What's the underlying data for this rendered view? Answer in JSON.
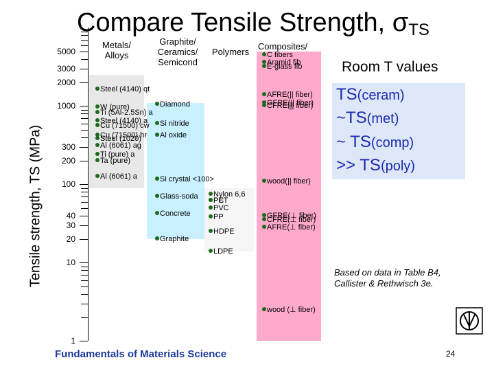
{
  "title_main": "Compare Tensile Strength, σ",
  "title_sub": "TS",
  "ylabel": "Tensile strength, TS (MPa)",
  "room_t": "Room T values",
  "columns": [
    {
      "key": "metals",
      "label": "Metals/\nAlloys"
    },
    {
      "key": "ceramics",
      "label": "Graphite/\nCeramics/\nSemicond"
    },
    {
      "key": "polymers",
      "label": "Polymers"
    },
    {
      "key": "composites",
      "label": "Composites/\nfibers"
    }
  ],
  "note": "Based on data in Table B4,\nCallister & Rethwisch 3e.",
  "footer": "Fundamentals of Materials Science",
  "page_number": "24",
  "relations": [
    {
      "left": "TS",
      "sub": "(ceram)",
      "prefix": ""
    },
    {
      "left": "TS",
      "sub": "(met)",
      "prefix": "~"
    },
    {
      "left": "TS",
      "sub": "(comp)",
      "prefix": "~ "
    },
    {
      "left": "TS",
      "sub": "(poly)",
      "prefix": ">> "
    }
  ],
  "colors": {
    "metals_bar": "#e8e8e8",
    "ceramics_bar": "#c8f0ff",
    "polymers_bar": "#f5f5f5",
    "composites_bar": "#ffaacc",
    "dot": "#1a6a1a",
    "relation_text": "#1a2ab0",
    "relation_bg": "#dde7f7",
    "footer": "#1a3a9a"
  },
  "chart_data": {
    "type": "bar",
    "scale": "log",
    "ylim": [
      1,
      10000
    ],
    "ylabel": "Tensile strength, TS (MPa)",
    "tick_labels": [
      "5000",
      "3000",
      "2000",
      "1000",
      "300",
      "200",
      "100",
      "40",
      "30",
      "20",
      "10",
      "1"
    ],
    "tick_values": [
      5000,
      3000,
      2000,
      1000,
      300,
      200,
      100,
      40,
      30,
      20,
      10,
      1
    ],
    "categories": [
      "Metals/ Alloys",
      "Graphite/ Ceramics/ Semicond",
      "Polymers",
      "Composites/ fibers"
    ],
    "ranges": [
      {
        "category": "Metals/ Alloys",
        "min": 90,
        "max": 2500
      },
      {
        "category": "Graphite/ Ceramics/ Semicond",
        "min": 20,
        "max": 1100
      },
      {
        "category": "Polymers",
        "min": 14,
        "max": 90
      },
      {
        "category": "Composites/ fibers",
        "min": 1,
        "max": 5000
      }
    ],
    "points": [
      {
        "category": "Metals/ Alloys",
        "label": "Steel (4140) qt",
        "value": 1650
      },
      {
        "category": "Metals/ Alloys",
        "label": "W (pure)",
        "value": 960
      },
      {
        "category": "Metals/ Alloys",
        "label": "Ti (5Al-2.5Sn) a",
        "value": 830
      },
      {
        "category": "Metals/ Alloys",
        "label": "Steel (4140) a",
        "value": 650
      },
      {
        "category": "Metals/ Alloys",
        "label": "Cu (71500) cw",
        "value": 560
      },
      {
        "category": "Metals/ Alloys",
        "label": "Cu (71500) hr",
        "value": 420
      },
      {
        "category": "Metals/ Alloys",
        "label": "Steel (1020)",
        "value": 380
      },
      {
        "category": "Metals/ Alloys",
        "label": "Al (6061) ag",
        "value": 310
      },
      {
        "category": "Metals/ Alloys",
        "label": "Ti (pure) a",
        "value": 240
      },
      {
        "category": "Metals/ Alloys",
        "label": "Ta (pure)",
        "value": 200
      },
      {
        "category": "Metals/ Alloys",
        "label": "Al (6061) a",
        "value": 125
      },
      {
        "category": "Graphite/ Ceramics/ Semicond",
        "label": "Diamond",
        "value": 1050
      },
      {
        "category": "Graphite/ Ceramics/ Semicond",
        "label": "Si nitride",
        "value": 600
      },
      {
        "category": "Graphite/ Ceramics/ Semicond",
        "label": "Al oxide",
        "value": 420
      },
      {
        "category": "Graphite/ Ceramics/ Semicond",
        "label": "Si crystal <100>",
        "value": 115
      },
      {
        "category": "Graphite/ Ceramics/ Semicond",
        "label": "Glass-soda",
        "value": 70
      },
      {
        "category": "Graphite/ Ceramics/ Semicond",
        "label": "Concrete",
        "value": 42
      },
      {
        "category": "Graphite/ Ceramics/ Semicond",
        "label": "Graphite",
        "value": 20
      },
      {
        "category": "Polymers",
        "label": "Nylon 6,6",
        "value": 75
      },
      {
        "category": "Polymers",
        "label": "PC",
        "value": 62
      },
      {
        "category": "Polymers",
        "label": "PET",
        "value": 62
      },
      {
        "category": "Polymers",
        "label": "PVC",
        "value": 50
      },
      {
        "category": "Polymers",
        "label": "PP",
        "value": 38
      },
      {
        "category": "Polymers",
        "label": "HDPE",
        "value": 25
      },
      {
        "category": "Polymers",
        "label": "LDPE",
        "value": 14
      },
      {
        "category": "Composites/ fibers",
        "label": "C fibers",
        "value": 4500
      },
      {
        "category": "Composites/ fibers",
        "label": "Aramid fib",
        "value": 3600
      },
      {
        "category": "Composites/ fibers",
        "label": "E-glass fib",
        "value": 3200
      },
      {
        "category": "Composites/ fibers",
        "label": "AFRE(|| fiber)",
        "value": 1400
      },
      {
        "category": "Composites/ fibers",
        "label": "GFRE(|| fiber)",
        "value": 1100
      },
      {
        "category": "Composites/ fibers",
        "label": "CFRE(|| fiber)",
        "value": 1000
      },
      {
        "category": "Composites/ fibers",
        "label": "wood(|| fiber)",
        "value": 110
      },
      {
        "category": "Composites/ fibers",
        "label": "GFRE(⊥ fiber)",
        "value": 40
      },
      {
        "category": "Composites/ fibers",
        "label": "CFRE(⊥ fiber)",
        "value": 35
      },
      {
        "category": "Composites/ fibers",
        "label": "AFRE(⊥ fiber)",
        "value": 28
      },
      {
        "category": "Composites/ fibers",
        "label": "wood (⊥ fiber)",
        "value": 2.5
      }
    ]
  }
}
